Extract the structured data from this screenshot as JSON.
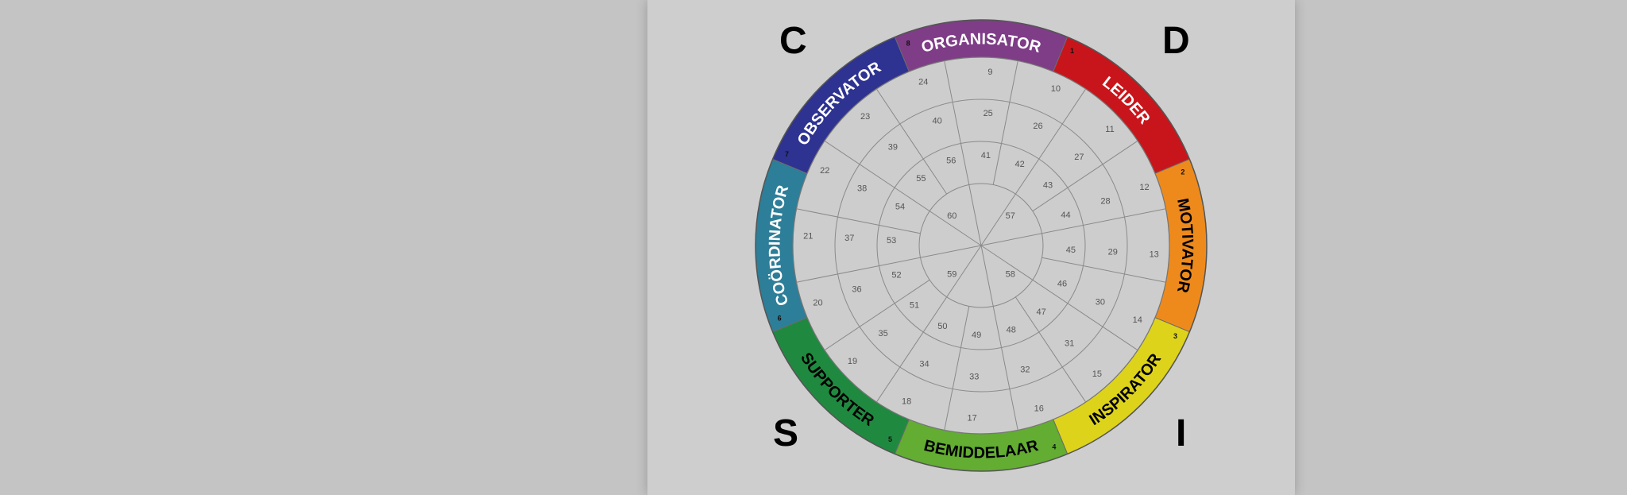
{
  "quadrants": [
    "C",
    "D",
    "S",
    "I"
  ],
  "segments": [
    {
      "label": "ORGANISATOR",
      "number": "8",
      "color": "#7e3d86",
      "text_color": "#ffffff"
    },
    {
      "label": "LEIDER",
      "number": "1",
      "color": "#c8151b",
      "text_color": "#ffffff"
    },
    {
      "label": "MOTIVATOR",
      "number": "2",
      "color": "#ee8a1c",
      "text_color": "#000000"
    },
    {
      "label": "INSPIRATOR",
      "number": "3",
      "color": "#ddd31a",
      "text_color": "#000000"
    },
    {
      "label": "BEMIDDELAAR",
      "number": "4",
      "color": "#62ad32",
      "text_color": "#000000"
    },
    {
      "label": "SUPPORTER",
      "number": "5",
      "color": "#1f8a3f",
      "text_color": "#000000"
    },
    {
      "label": "COÖRDINATOR",
      "number": "6",
      "color": "#2d7e98",
      "text_color": "#ffffff"
    },
    {
      "label": "OBSERVATOR",
      "number": "7",
      "color": "#2e3291",
      "text_color": "#ffffff"
    }
  ],
  "rings": {
    "outer": [
      "9",
      "10",
      "11",
      "12",
      "13",
      "14",
      "15",
      "16",
      "17",
      "18",
      "19",
      "20",
      "21",
      "22",
      "23",
      "24"
    ],
    "second": [
      "25",
      "26",
      "27",
      "28",
      "29",
      "30",
      "31",
      "32",
      "33",
      "34",
      "35",
      "36",
      "37",
      "38",
      "39",
      "40"
    ],
    "third": [
      "41",
      "42",
      "43",
      "44",
      "45",
      "46",
      "47",
      "48",
      "49",
      "50",
      "51",
      "52",
      "53",
      "54",
      "55",
      "56"
    ],
    "inner": [
      "57",
      "58",
      "59",
      "60"
    ]
  }
}
